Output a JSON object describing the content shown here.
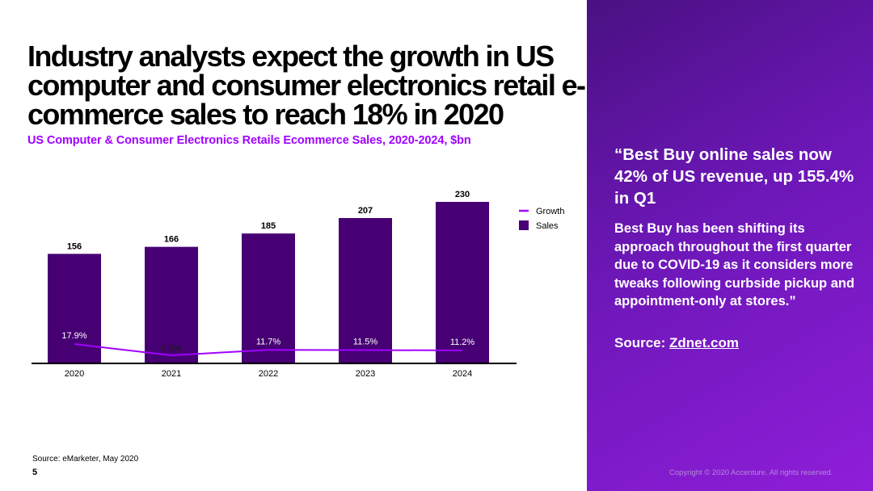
{
  "slide": {
    "headline": "Industry analysts expect the  growth in US computer and consumer electronics retail e-commerce sales to reach 18% in 2020",
    "subtitle": "US Computer & Consumer Electronics Retails Ecommerce Sales, 2020-2024, $bn",
    "source_note": "Source: eMarketer, May 2020",
    "page_number": "5",
    "copyright": "Copyright © 2020 Accenture. All rights reserved."
  },
  "quote": {
    "title": "“Best Buy online sales now 42% of US revenue, up 155.4% in Q1",
    "body": "Best Buy has been shifting its approach throughout the first quarter due to COVID-19 as it considers more tweaks following curbside pickup and appointment-only at stores.”",
    "source_label": "Source: ",
    "source_link": "Zdnet.com"
  },
  "colors": {
    "bar": "#460073",
    "line": "#a100ff",
    "accent": "#a100ff",
    "panel_dark": "#4a1182",
    "panel_light": "#8f1ed9"
  },
  "chart_data": {
    "type": "bar",
    "title": "",
    "categories": [
      "2020",
      "2021",
      "2022",
      "2023",
      "2024"
    ],
    "series": [
      {
        "name": "Sales",
        "type": "bar",
        "values": [
          156,
          166,
          185,
          207,
          230
        ],
        "labels": [
          "156",
          "166",
          "185",
          "207",
          "230"
        ]
      },
      {
        "name": "Growth",
        "type": "line",
        "values": [
          17.9,
          6.0,
          11.7,
          11.5,
          11.2
        ],
        "labels": [
          "17.9%",
          "6.0%",
          "11.7%",
          "11.5%",
          "11.2%"
        ]
      }
    ],
    "legend": [
      "Growth",
      "Sales"
    ],
    "legend_position": "top-right",
    "xlabel": "",
    "ylabel": "",
    "ylim": [
      0,
      230
    ],
    "grid": false
  }
}
